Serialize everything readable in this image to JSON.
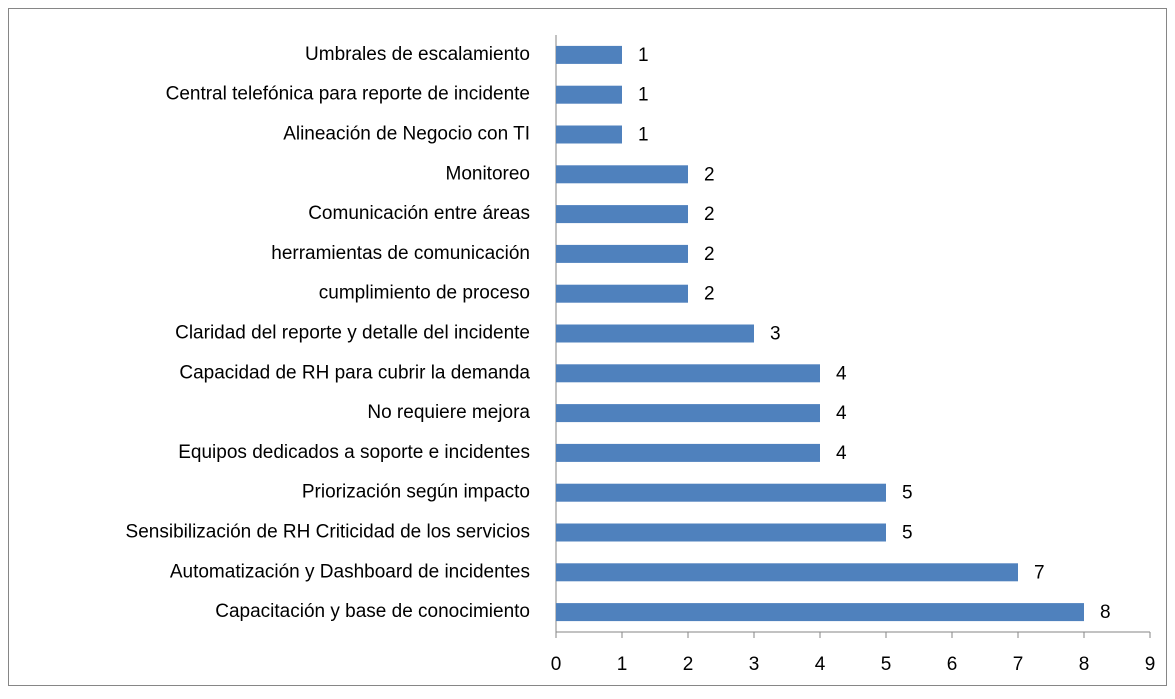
{
  "chart_data": {
    "type": "bar",
    "orientation": "horizontal",
    "categories": [
      "Umbrales de escalamiento",
      "Central telefónica para reporte de incidente",
      "Alineación de Negocio con TI",
      "Monitoreo",
      "Comunicación entre áreas",
      "herramientas de comunicación",
      "cumplimiento de proceso",
      "Claridad del reporte y detalle del incidente",
      "Capacidad de RH para cubrir la demanda",
      "No requiere mejora",
      "Equipos dedicados a soporte e incidentes",
      "Priorización según impacto",
      "Sensibilización de RH Criticidad de los servicios",
      "Automatización y Dashboard de incidentes",
      "Capacitación y base de conocimiento"
    ],
    "values": [
      1,
      1,
      1,
      2,
      2,
      2,
      2,
      3,
      4,
      4,
      4,
      5,
      5,
      7,
      8
    ],
    "color": "#4f81bd",
    "xlim": [
      0,
      9
    ],
    "xticks": [
      0,
      1,
      2,
      3,
      4,
      5,
      6,
      7,
      8,
      9
    ],
    "grid": false
  }
}
